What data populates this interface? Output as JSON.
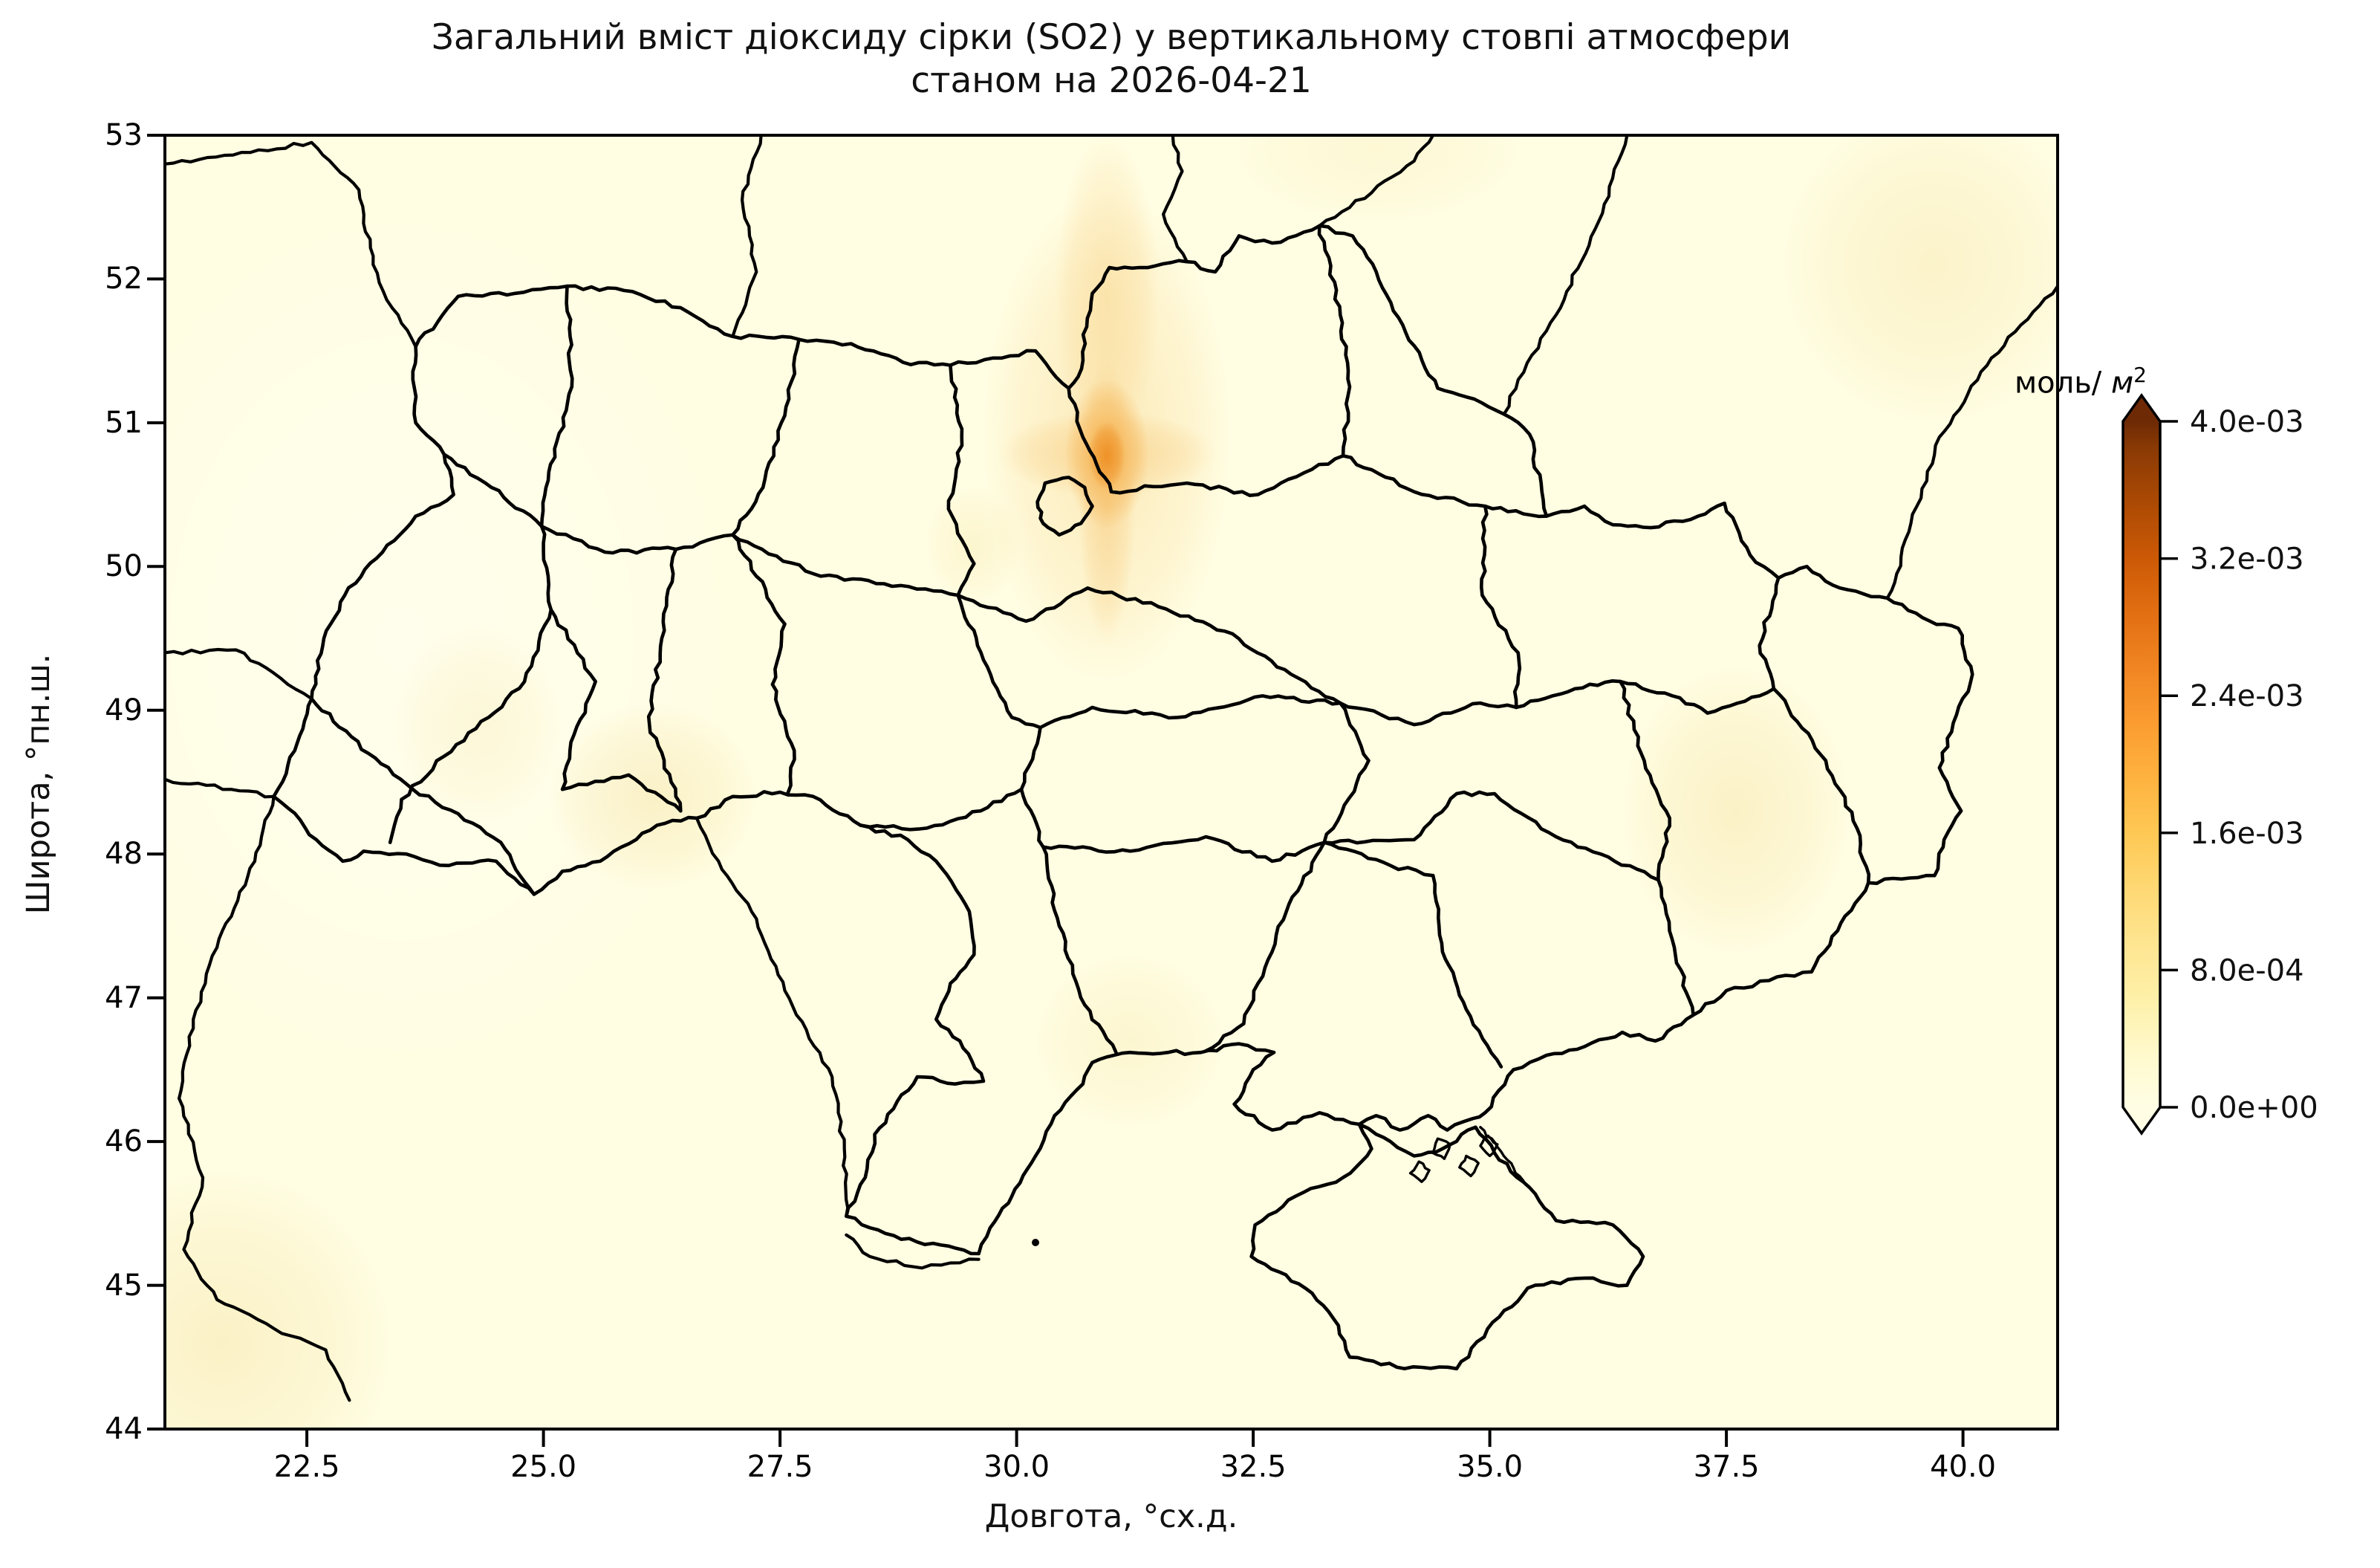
{
  "figure": {
    "title_line1": "Загальний вміст діоксиду сірки (SO2) у вертикальному стовпі атмосфери",
    "title_line2": "станом на 2026-04-21",
    "xlabel": "Довгота, °сх.д.",
    "ylabel": "Широта, °пн.ш.",
    "x_tick_labels": [
      "22.5",
      "25.0",
      "27.5",
      "30.0",
      "32.5",
      "35.0",
      "37.5",
      "40.0"
    ],
    "y_tick_labels": [
      "53",
      "52",
      "51",
      "50",
      "49",
      "48",
      "47",
      "46",
      "45",
      "44"
    ],
    "colorbar_tick_labels": [
      "4.0e-03",
      "3.2e-03",
      "2.4e-03",
      "1.6e-03",
      "8.0e-04",
      "0.0e+00"
    ],
    "colorbar_unit_prefix": "моль/ ",
    "colorbar_unit_symbol": "м",
    "colorbar_unit_sup": "2"
  },
  "chart_data": {
    "type": "heatmap",
    "title": "Загальний вміст діоксиду сірки (SO2) у вертикальному стовпі атмосфери станом на 2026-04-21",
    "date_shown": "2026-04-21",
    "xlabel": "Довгота, °сх.д.",
    "ylabel": "Широта, °пн.ш.",
    "xlim": [
      21,
      41
    ],
    "ylim": [
      44,
      53
    ],
    "x_ticks": [
      22.5,
      25.0,
      27.5,
      30.0,
      32.5,
      35.0,
      37.5,
      40.0
    ],
    "y_ticks": [
      53,
      52,
      51,
      50,
      49,
      48,
      47,
      46,
      45,
      44
    ],
    "grid": false,
    "region": "Україна з межами областей та сусідніми кордонами",
    "colorbar": {
      "unit": "моль/м²",
      "orientation": "vertical",
      "position": "right",
      "colormap": "YlOrBr",
      "extend": "both",
      "vmin": 0.0,
      "vmax": 0.004,
      "tick_values": [
        0.0,
        0.0008,
        0.0016,
        0.0024,
        0.0032,
        0.004
      ],
      "tick_labels": [
        "0.0e+00",
        "8.0e-04",
        "1.6e-03",
        "2.4e-03",
        "3.2e-03",
        "4.0e-03"
      ]
    },
    "field_summary": {
      "background_value_mol_m2": 0.0002,
      "main_hotspot": {
        "lon": 30.95,
        "lat": 50.8,
        "approx_peak_mol_m2": 0.0018
      },
      "secondary_elevated_areas": [
        {
          "lon": 26.2,
          "lat": 48.4,
          "approx_mol_m2": 0.0005
        },
        {
          "lon": 37.6,
          "lat": 48.3,
          "approx_mol_m2": 0.0004
        },
        {
          "lon": 39.7,
          "lat": 52.1,
          "approx_mol_m2": 0.0004
        },
        {
          "lon": 31.2,
          "lat": 46.7,
          "approx_mol_m2": 0.0004
        }
      ]
    }
  }
}
